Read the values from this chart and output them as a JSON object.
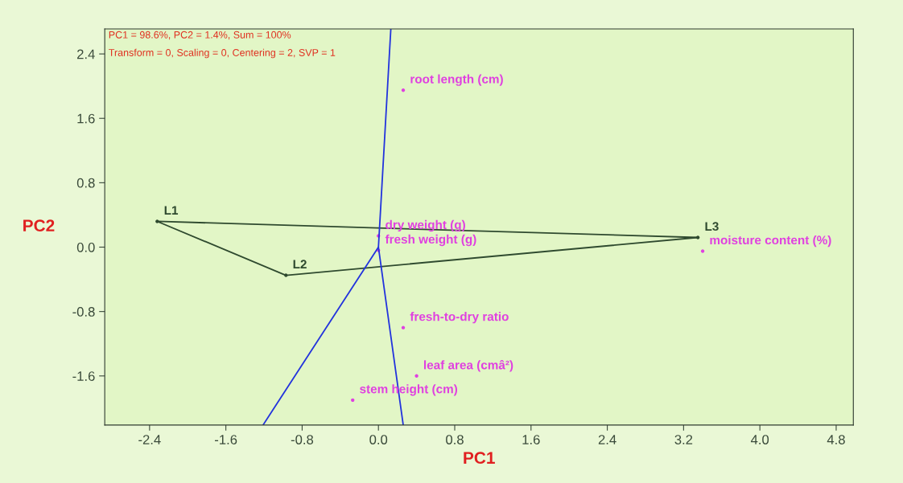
{
  "chart_data": {
    "type": "scatter",
    "xlabel": "PC1",
    "ylabel": "PC2",
    "xlim": [
      -2.87,
      4.98
    ],
    "ylim": [
      -2.21,
      2.71
    ],
    "xticks": [
      -2.4,
      -1.6,
      -0.8,
      {
        "value": 0,
        "label": "0.0"
      },
      0.8,
      1.6,
      2.4,
      3.2,
      {
        "value": 4,
        "label": "4.0"
      },
      4.8
    ],
    "yticks": [
      -1.6,
      -0.8,
      {
        "value": 0,
        "label": "0.0"
      },
      0.8,
      1.6,
      2.4
    ],
    "grid": false,
    "marker": "none",
    "annotations": [
      "PC1 = 98.6%, PC2 = 1.4%, Sum = 100%",
      "Transform = 0, Scaling = 0, Centering = 2, SVP = 1"
    ],
    "series": [
      {
        "type": "line",
        "color": "#2f4a2f",
        "x": [
          -0.97,
          -2.32,
          3.35
        ],
        "values": [
          -0.35,
          0.32,
          0.12
        ]
      },
      {
        "type": "line",
        "color": "#2f4a2f",
        "x": [
          3.35,
          -0.97
        ],
        "values": [
          0.12,
          -0.35
        ]
      },
      {
        "type": "line",
        "color": "#2233dd",
        "x": [
          0.13,
          0.0,
          0.26
        ],
        "values": [
          2.71,
          0.0,
          -2.21
        ]
      },
      {
        "type": "line",
        "color": "#2233dd",
        "x": [
          0.0,
          -1.21
        ],
        "values": [
          0.0,
          -2.21
        ]
      },
      {
        "color": "#2f4a2f",
        "marker": "circle",
        "x": [
          -2.32,
          -0.97,
          3.35
        ],
        "values": [
          0.32,
          -0.35,
          0.12
        ],
        "value_labels": [
          "L1",
          "L2",
          "L3"
        ]
      },
      {
        "color": "#e040e0",
        "marker": "circle",
        "x": [
          0.26,
          0.0,
          0.0,
          3.4,
          0.26,
          0.4,
          -0.27
        ],
        "values": [
          1.95,
          0.14,
          -0.04,
          -0.05,
          -1.0,
          -1.6,
          -1.9
        ],
        "value_labels": [
          "root length (cm)",
          "dry weight (g)",
          "fresh weight (g)",
          "moisture content (%)",
          "fresh-to-dry ratio",
          "leaf area (cmâ²)",
          "stem height (cm)"
        ]
      }
    ]
  }
}
